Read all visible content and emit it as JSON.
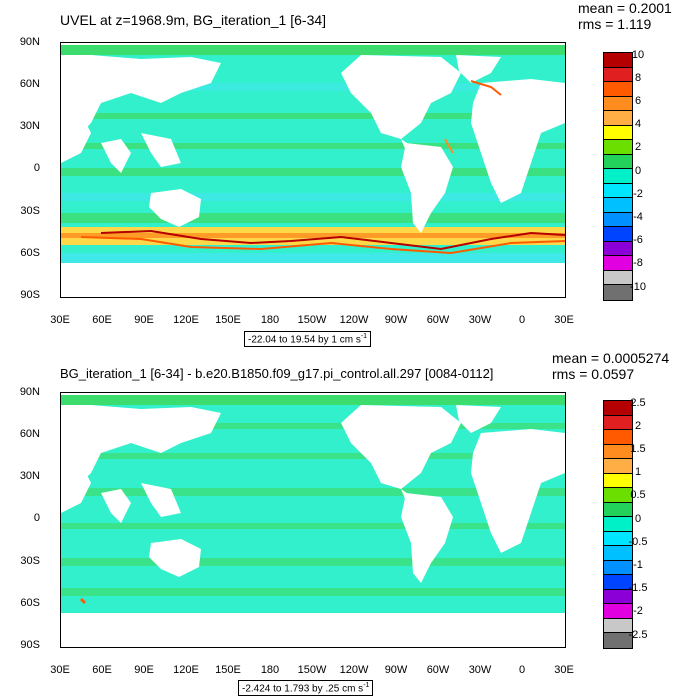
{
  "top": {
    "title": "UVEL at z=1968.9m, BG_iteration_1 [6-34]",
    "mean": "mean = 0.2001",
    "rms": "rms = 1.119",
    "range_text": "-22.04 to 19.54 by 1 cm s",
    "range_unit_exp": "-1",
    "colorbar_labels": [
      "10",
      "8",
      "6",
      "4",
      "2",
      "0",
      "-2",
      "-4",
      "-6",
      "-8",
      "-10"
    ],
    "colors": [
      "#b40000",
      "#e02020",
      "#ff5a00",
      "#ff8c1e",
      "#ffae46",
      "#ffff00",
      "#6be000",
      "#22d25a",
      "#00f0c8",
      "#00e6ff",
      "#00c0ff",
      "#0090ff",
      "#0044ff",
      "#8a00d6",
      "#e000e0",
      "#c8c8c8",
      "#707070"
    ]
  },
  "bottom": {
    "title": "BG_iteration_1 [6-34] - b.e20.B1850.f09_g17.pi_control.all.297 [0084-0112]",
    "mean": "mean = 0.0005274",
    "rms": "rms = 0.0597",
    "range_text": "-2.424 to 1.793 by .25 cm s",
    "range_unit_exp": "-1",
    "colorbar_labels": [
      "2.5",
      "2",
      "1.5",
      "1",
      "0.5",
      "0",
      "-0.5",
      "-1",
      "-1.5",
      "-2",
      "-2.5"
    ],
    "colors": [
      "#b40000",
      "#e02020",
      "#ff5a00",
      "#ff8c1e",
      "#ffae46",
      "#ffff00",
      "#6be000",
      "#22d25a",
      "#00f0c8",
      "#00e6ff",
      "#00c0ff",
      "#0090ff",
      "#0044ff",
      "#8a00d6",
      "#e000e0",
      "#c8c8c8",
      "#707070"
    ]
  },
  "axes": {
    "lat_labels": [
      "90N",
      "60N",
      "30N",
      "0",
      "30S",
      "60S",
      "90S"
    ],
    "lon_labels": [
      "30E",
      "60E",
      "90E",
      "120E",
      "150E",
      "180",
      "150W",
      "120W",
      "90W",
      "60W",
      "30W",
      "0",
      "30E"
    ]
  },
  "palette": {
    "ocean_green": "#3ddc6e",
    "ocean_cyan": "#33f0cc",
    "ocean_light_cyan": "#40e8e8",
    "land": "#ffffff"
  }
}
